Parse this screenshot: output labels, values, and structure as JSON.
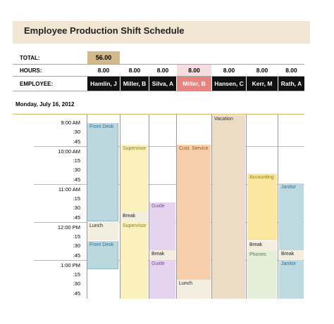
{
  "title": "Employee Production Shift Schedule",
  "labels": {
    "total": "TOTAL:",
    "hours": "HOURS:",
    "employee": "EMPLOYEE:"
  },
  "total_value": "56.00",
  "date": "Monday, July 16, 2012",
  "employees": [
    {
      "name": "Hamlin, J",
      "hours": "8.00"
    },
    {
      "name": "Miller, B",
      "hours": "8.00"
    },
    {
      "name": "Silva, A",
      "hours": "8.00"
    },
    {
      "name": "Miller, B",
      "hours": "8.00"
    },
    {
      "name": "Hansen, C",
      "hours": "8.00"
    },
    {
      "name": "Kerr, M",
      "hours": "8.00"
    },
    {
      "name": "Rath, A",
      "hours": "8.00"
    }
  ],
  "times": [
    "9:00 AM",
    ":30",
    ":45",
    "10:00 AM",
    ":15",
    ":30",
    ":45",
    "11:00 AM",
    ":15",
    ":30",
    ":45",
    "12:00 PM",
    ":15",
    ":30",
    ":45",
    "1:00 PM",
    ":15",
    ":30",
    ":45"
  ],
  "blocks": {
    "front_desk_1": "Front Desk",
    "lunch_1": "Lunch",
    "front_desk_2": "Front Desk",
    "supervisor_1": "Supervisor",
    "break_1": "Break",
    "supervisor_2": "Supervisor",
    "guide_1": "Guide",
    "break_2": "Break",
    "guide_2": "Guide",
    "cust_service": "Cust. Service",
    "lunch_2": "Lunch",
    "vacation": "Vacation",
    "accounting": "Accounting",
    "break_3": "Break",
    "phones": "Phones",
    "janitor_1": "Janitor",
    "break_4": "Break",
    "janitor_2": "Janitor"
  },
  "colors": {
    "title_bg": "#f1e6d2",
    "total_bg": "#d2b98a",
    "employee_bg": "#111111",
    "employee_highlight": "#e8847f",
    "front_desk": "#bcd8df",
    "supervisor": "#fbf1bd",
    "guide": "#e4d4ee",
    "cust_service": "#f8cfac",
    "vacation": "#ecdcc6",
    "accounting": "#fbe7a0",
    "phones": "#e3efd9",
    "janitor": "#bfd9e1",
    "lunch": "#f3eee0"
  }
}
